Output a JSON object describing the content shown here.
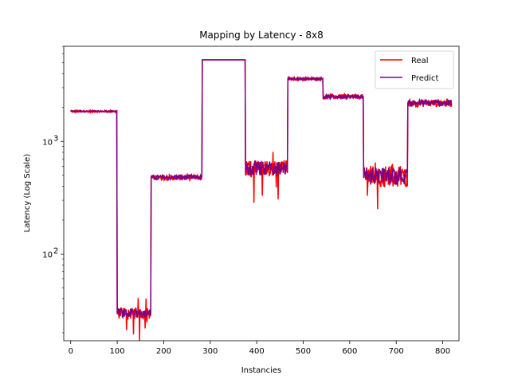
{
  "chart_data": {
    "type": "line",
    "title": "Mapping by Latency - 8x8",
    "xlabel": "Instancies",
    "ylabel": "Latency (Log Scale)",
    "yscale": "log",
    "xlim": [
      -15,
      835
    ],
    "ylim": [
      17,
      7000
    ],
    "xticks": [
      0,
      100,
      200,
      300,
      400,
      500,
      600,
      700,
      800
    ],
    "yticks": [
      {
        "value": 100,
        "label": "10",
        "exp": "2"
      },
      {
        "value": 1000,
        "label": "10",
        "exp": "3"
      }
    ],
    "grid": false,
    "legend": "top-right",
    "segments": [
      {
        "start": 0,
        "end": 99,
        "level": 1850,
        "jitter": 0.02
      },
      {
        "start": 100,
        "end": 172,
        "level": 30,
        "jitter": 0.12
      },
      {
        "start": 173,
        "end": 282,
        "level": 480,
        "jitter": 0.06
      },
      {
        "start": 283,
        "end": 375,
        "level": 5300,
        "jitter": 0.0
      },
      {
        "start": 376,
        "end": 466,
        "level": 580,
        "jitter": 0.18
      },
      {
        "start": 467,
        "end": 542,
        "level": 3600,
        "jitter": 0.03
      },
      {
        "start": 543,
        "end": 629,
        "level": 2500,
        "jitter": 0.05
      },
      {
        "start": 630,
        "end": 724,
        "level": 500,
        "jitter": 0.22
      },
      {
        "start": 725,
        "end": 819,
        "level": 2200,
        "jitter": 0.08
      }
    ],
    "series": [
      {
        "name": "Real",
        "color": "#ff0000"
      },
      {
        "name": "Predict",
        "color": "#800080"
      }
    ]
  }
}
